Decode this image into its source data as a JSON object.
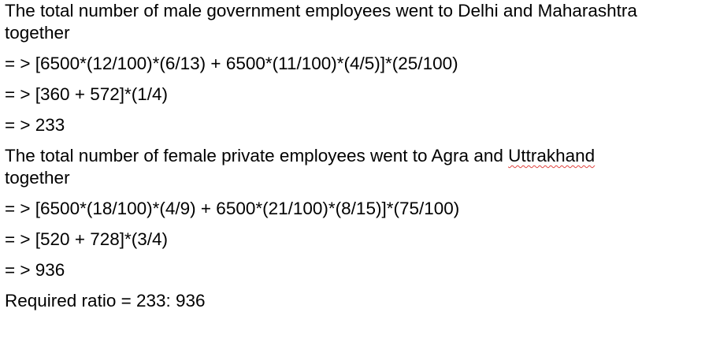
{
  "part1": {
    "heading_line1": "The total number of male government employees went to Delhi and Maharashtra",
    "heading_line2": "together",
    "step1": "= > [6500*(12/100)*(6/13) + 6500*(11/100)*(4/5)]*(25/100)",
    "step2": "= > [360 + 572]*(1/4)",
    "result": "= > 233"
  },
  "part2": {
    "heading_before": "The total number of female private employees went to Agra and ",
    "heading_misspelled": "Uttrakhand",
    "heading_line2": "together",
    "step1": "= > [6500*(18/100)*(4/9) + 6500*(21/100)*(8/15)]*(75/100)",
    "step2": "= > [520 + 728]*(3/4)",
    "result": "= > 936"
  },
  "conclusion": "Required ratio = 233: 936",
  "colors": {
    "text": "#000000",
    "spellcheck_underline": "#e0443e",
    "background": "#ffffff"
  }
}
